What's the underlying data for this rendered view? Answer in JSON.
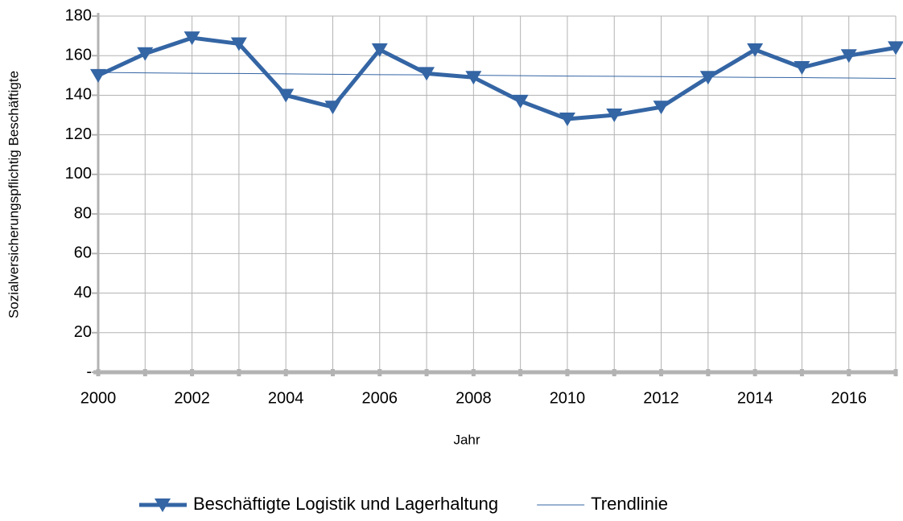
{
  "chart_data": {
    "type": "line",
    "x_label": "Jahr",
    "y_label": "Sozialversicherungspflichtig Beschäftigte",
    "x": [
      2000,
      2001,
      2002,
      2003,
      2004,
      2005,
      2006,
      2007,
      2008,
      2009,
      2010,
      2011,
      2012,
      2013,
      2014,
      2015,
      2016,
      2017
    ],
    "series": [
      {
        "name": "Beschäftigte Logistik und Lagerhaltung",
        "color": "#3465a4",
        "marker": "triangle-down",
        "values": [
          150,
          161,
          169,
          166,
          140,
          134,
          163,
          151,
          149,
          137,
          128,
          130,
          134,
          149,
          163,
          154,
          160,
          164
        ]
      },
      {
        "name": "Trendlinie",
        "color": "#3465a4",
        "values": [
          151.5,
          151.3,
          151.1,
          151.0,
          150.8,
          150.6,
          150.4,
          150.3,
          150.1,
          149.9,
          149.7,
          149.6,
          149.4,
          149.2,
          149.0,
          148.9,
          148.7,
          148.5
        ]
      }
    ],
    "xlim": [
      2000,
      2017
    ],
    "xticks": [
      2000,
      2002,
      2004,
      2006,
      2008,
      2010,
      2012,
      2014,
      2016
    ],
    "ylim": [
      0,
      180
    ],
    "yticks": [
      {
        "value": 0,
        "label": "-"
      },
      20,
      40,
      60,
      80,
      100,
      120,
      140,
      160,
      180
    ],
    "grid": true,
    "legend": "bottom"
  }
}
